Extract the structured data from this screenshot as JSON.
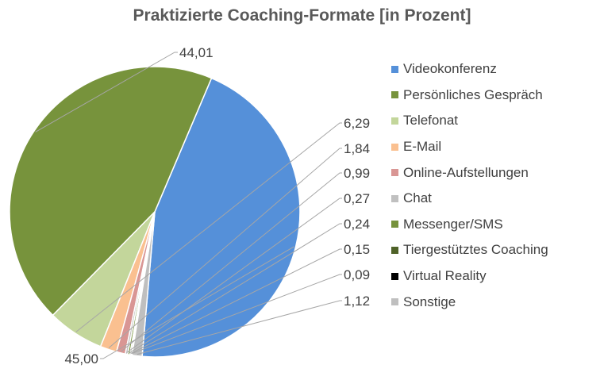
{
  "chart_data": {
    "type": "pie",
    "title": "Praktizierte Coaching-Formate [in Prozent]",
    "legend_position": "right",
    "slices": [
      {
        "name": "Videokonferenz",
        "value": 45.0,
        "label": "45,00",
        "color": "#5590d9"
      },
      {
        "name": "Persönliches Gespräch",
        "value": 44.01,
        "label": "44,01",
        "color": "#77933c"
      },
      {
        "name": "Telefonat",
        "value": 6.29,
        "label": "6,29",
        "color": "#c3d69b"
      },
      {
        "name": "E-Mail",
        "value": 1.84,
        "label": "1,84",
        "color": "#fac090"
      },
      {
        "name": "Online-Aufstellungen",
        "value": 0.99,
        "label": "0,99",
        "color": "#d99694"
      },
      {
        "name": "Chat",
        "value": 0.27,
        "label": "0,27",
        "color": "#c0c0c0"
      },
      {
        "name": "Messenger/SMS",
        "value": 0.24,
        "label": "0,24",
        "color": "#76923c"
      },
      {
        "name": "Tiergestütztes Coaching",
        "value": 0.15,
        "label": "0,15",
        "color": "#4f6228"
      },
      {
        "name": "Virtual Reality",
        "value": 0.09,
        "label": "0,09",
        "color": "#000000"
      },
      {
        "name": "Sonstige",
        "value": 1.12,
        "label": "1,12",
        "color": "#bfbfbf"
      }
    ]
  }
}
